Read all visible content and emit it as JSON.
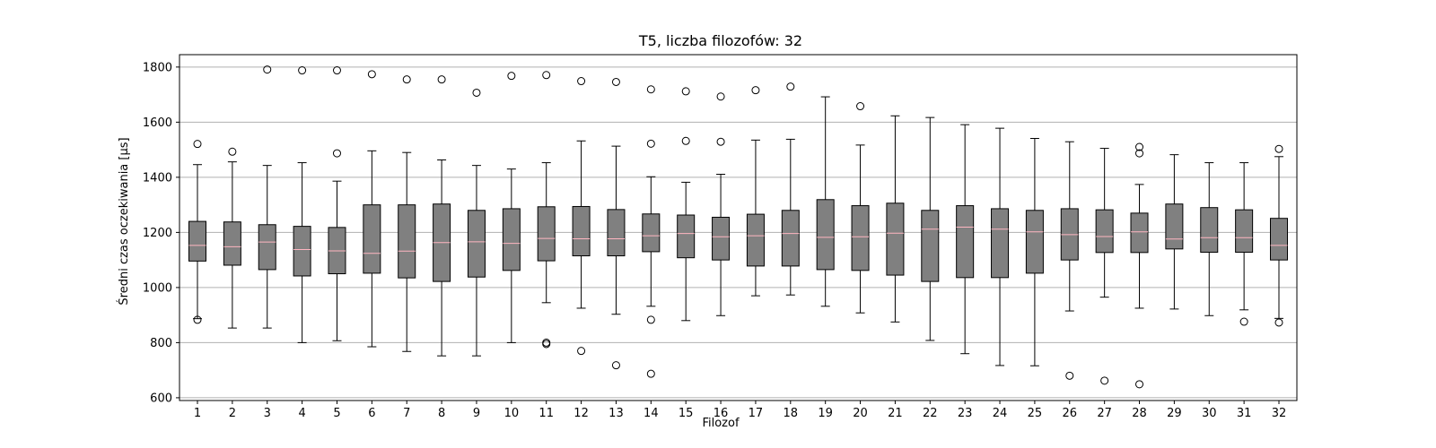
{
  "chart_data": {
    "type": "boxplot",
    "title": "T5, liczba filozofów: 32",
    "xlabel": "Filozof",
    "ylabel": "Średni czas oczekiwania [µs]",
    "ylim": [
      590,
      1845
    ],
    "yticks": [
      600,
      800,
      1000,
      1200,
      1400,
      1600,
      1800
    ],
    "grid": "horizontal",
    "colors": {
      "box_fill": "#808080",
      "median": "#ffb6c1",
      "grid": "#b0b0b0"
    },
    "categories": [
      "1",
      "2",
      "3",
      "4",
      "5",
      "6",
      "7",
      "8",
      "9",
      "10",
      "11",
      "12",
      "13",
      "14",
      "15",
      "16",
      "17",
      "18",
      "19",
      "20",
      "21",
      "22",
      "23",
      "24",
      "25",
      "26",
      "27",
      "28",
      "29",
      "30",
      "31",
      "32"
    ],
    "boxes": [
      {
        "label": "1",
        "whislo": 887,
        "q1": 1096,
        "med": 1153,
        "q3": 1240,
        "whishi": 1446,
        "fliers": [
          883,
          1521
        ]
      },
      {
        "label": "2",
        "whislo": 853,
        "q1": 1081,
        "med": 1148,
        "q3": 1238,
        "whishi": 1456,
        "fliers": [
          1493
        ]
      },
      {
        "label": "3",
        "whislo": 853,
        "q1": 1065,
        "med": 1165,
        "q3": 1228,
        "whishi": 1443,
        "fliers": [
          1791
        ]
      },
      {
        "label": "4",
        "whislo": 800,
        "q1": 1042,
        "med": 1138,
        "q3": 1222,
        "whishi": 1453,
        "fliers": [
          1788
        ]
      },
      {
        "label": "5",
        "whislo": 807,
        "q1": 1050,
        "med": 1133,
        "q3": 1218,
        "whishi": 1386,
        "fliers": [
          1788,
          1487
        ]
      },
      {
        "label": "6",
        "whislo": 785,
        "q1": 1052,
        "med": 1124,
        "q3": 1300,
        "whishi": 1496,
        "fliers": [
          1774
        ]
      },
      {
        "label": "7",
        "whislo": 768,
        "q1": 1035,
        "med": 1132,
        "q3": 1300,
        "whishi": 1490,
        "fliers": [
          1755
        ]
      },
      {
        "label": "8",
        "whislo": 752,
        "q1": 1022,
        "med": 1163,
        "q3": 1303,
        "whishi": 1463,
        "fliers": [
          1755
        ]
      },
      {
        "label": "9",
        "whislo": 752,
        "q1": 1038,
        "med": 1166,
        "q3": 1280,
        "whishi": 1443,
        "fliers": [
          1707
        ]
      },
      {
        "label": "10",
        "whislo": 800,
        "q1": 1062,
        "med": 1160,
        "q3": 1286,
        "whishi": 1430,
        "fliers": [
          1768
        ]
      },
      {
        "label": "11",
        "whislo": 945,
        "q1": 1097,
        "med": 1178,
        "q3": 1293,
        "whishi": 1453,
        "fliers": [
          1771,
          800,
          795
        ]
      },
      {
        "label": "12",
        "whislo": 925,
        "q1": 1115,
        "med": 1177,
        "q3": 1294,
        "whishi": 1532,
        "fliers": [
          1749,
          770
        ]
      },
      {
        "label": "13",
        "whislo": 903,
        "q1": 1115,
        "med": 1177,
        "q3": 1283,
        "whishi": 1513,
        "fliers": [
          1746,
          718
        ]
      },
      {
        "label": "14",
        "whislo": 932,
        "q1": 1130,
        "med": 1188,
        "q3": 1267,
        "whishi": 1402,
        "fliers": [
          1719,
          1522,
          883,
          687
        ]
      },
      {
        "label": "15",
        "whislo": 880,
        "q1": 1108,
        "med": 1196,
        "q3": 1263,
        "whishi": 1382,
        "fliers": [
          1712,
          1532
        ]
      },
      {
        "label": "16",
        "whislo": 898,
        "q1": 1100,
        "med": 1184,
        "q3": 1255,
        "whishi": 1411,
        "fliers": [
          1693,
          1529
        ]
      },
      {
        "label": "17",
        "whislo": 970,
        "q1": 1078,
        "med": 1188,
        "q3": 1266,
        "whishi": 1535,
        "fliers": [
          1716
        ]
      },
      {
        "label": "18",
        "whislo": 973,
        "q1": 1078,
        "med": 1196,
        "q3": 1280,
        "whishi": 1538,
        "fliers": [
          1729
        ]
      },
      {
        "label": "19",
        "whislo": 932,
        "q1": 1065,
        "med": 1182,
        "q3": 1319,
        "whishi": 1692,
        "fliers": []
      },
      {
        "label": "20",
        "whislo": 908,
        "q1": 1062,
        "med": 1184,
        "q3": 1297,
        "whishi": 1517,
        "fliers": [
          1658
        ]
      },
      {
        "label": "21",
        "whislo": 875,
        "q1": 1045,
        "med": 1197,
        "q3": 1306,
        "whishi": 1623,
        "fliers": []
      },
      {
        "label": "22",
        "whislo": 808,
        "q1": 1022,
        "med": 1212,
        "q3": 1280,
        "whishi": 1617,
        "fliers": []
      },
      {
        "label": "23",
        "whislo": 760,
        "q1": 1036,
        "med": 1219,
        "q3": 1297,
        "whishi": 1591,
        "fliers": []
      },
      {
        "label": "24",
        "whislo": 717,
        "q1": 1036,
        "med": 1212,
        "q3": 1286,
        "whishi": 1578,
        "fliers": []
      },
      {
        "label": "25",
        "whislo": 716,
        "q1": 1052,
        "med": 1202,
        "q3": 1280,
        "whishi": 1541,
        "fliers": []
      },
      {
        "label": "26",
        "whislo": 915,
        "q1": 1100,
        "med": 1192,
        "q3": 1286,
        "whishi": 1529,
        "fliers": [
          680
        ]
      },
      {
        "label": "27",
        "whislo": 965,
        "q1": 1127,
        "med": 1185,
        "q3": 1282,
        "whishi": 1505,
        "fliers": [
          662
        ]
      },
      {
        "label": "28",
        "whislo": 925,
        "q1": 1127,
        "med": 1202,
        "q3": 1270,
        "whishi": 1374,
        "fliers": [
          1510,
          1487,
          649
        ]
      },
      {
        "label": "29",
        "whislo": 922,
        "q1": 1140,
        "med": 1176,
        "q3": 1303,
        "whishi": 1482,
        "fliers": []
      },
      {
        "label": "30",
        "whislo": 898,
        "q1": 1128,
        "med": 1181,
        "q3": 1290,
        "whishi": 1453,
        "fliers": []
      },
      {
        "label": "31",
        "whislo": 919,
        "q1": 1128,
        "med": 1181,
        "q3": 1282,
        "whishi": 1453,
        "fliers": [
          876
        ]
      },
      {
        "label": "32",
        "whislo": 888,
        "q1": 1100,
        "med": 1153,
        "q3": 1251,
        "whishi": 1475,
        "fliers": [
          1503,
          873
        ]
      }
    ]
  }
}
